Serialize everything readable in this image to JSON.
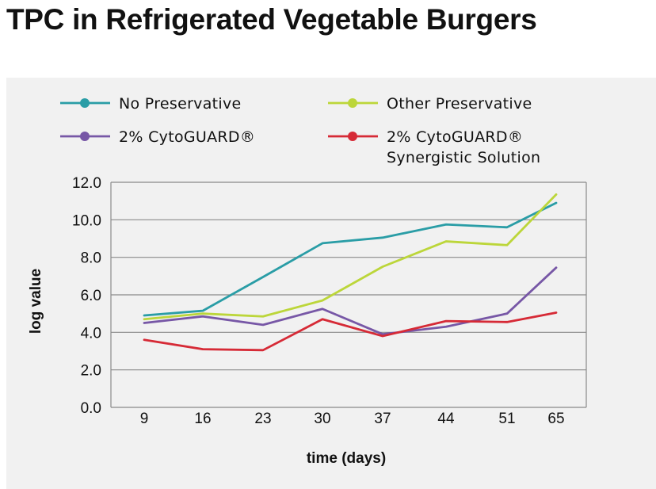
{
  "page": {
    "title": "TPC in Refrigerated Vegetable Burgers"
  },
  "chart_data": {
    "type": "line",
    "title": "TPC in Refrigerated Vegetable Burgers",
    "xlabel": "time (days)",
    "ylabel": "log value",
    "categories": [
      "9",
      "16",
      "23",
      "30",
      "37",
      "44",
      "51",
      "65"
    ],
    "yticks": [
      "0.0",
      "2.0",
      "4.0",
      "6.0",
      "8.0",
      "10.0",
      "12.0"
    ],
    "ylim": [
      0,
      12
    ],
    "grid": true,
    "legend_position": "top",
    "series": [
      {
        "name": "No Preservative",
        "color": "#2a9da6",
        "values": [
          4.9,
          5.15,
          6.95,
          8.75,
          9.05,
          9.75,
          9.6,
          10.9
        ]
      },
      {
        "name": "Other Preservative",
        "color": "#bcd63a",
        "values": [
          4.7,
          5.0,
          4.85,
          5.7,
          7.5,
          8.85,
          8.65,
          11.35
        ]
      },
      {
        "name": "2% CytoGUARD®",
        "color": "#7757a6",
        "values": [
          4.5,
          4.85,
          4.4,
          5.25,
          3.9,
          4.3,
          5.0,
          7.45
        ]
      },
      {
        "name": "2% CytoGUARD® Synergistic Solution",
        "name_lines": [
          "2% CytoGUARD®",
          "Synergistic Solution"
        ],
        "color": "#d62a36",
        "values": [
          3.6,
          3.1,
          3.05,
          4.7,
          3.8,
          4.6,
          4.55,
          5.05
        ]
      }
    ]
  }
}
